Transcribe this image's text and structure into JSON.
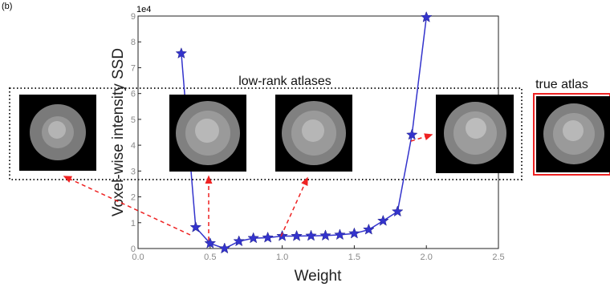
{
  "panel_label": "(b)",
  "chart_data": {
    "type": "line",
    "xlabel": "Weight",
    "ylabel": "Voxel-wise intensity SSD",
    "y_exponent_label": "1e4",
    "xlim": [
      0.0,
      2.5
    ],
    "ylim": [
      0,
      9
    ],
    "x_ticks": [
      "0.0",
      "0.5",
      "1.0",
      "1.5",
      "2.0",
      "2.5"
    ],
    "y_ticks": [
      "0",
      "1",
      "2",
      "3",
      "4",
      "5",
      "6",
      "7",
      "8",
      "9"
    ],
    "grid": false,
    "series": [
      {
        "color": "#3333cc",
        "marker": "star",
        "x": [
          0.3,
          0.4,
          0.5,
          0.6,
          0.7,
          0.8,
          0.9,
          1.0,
          1.1,
          1.2,
          1.3,
          1.4,
          1.5,
          1.6,
          1.7,
          1.8,
          1.9,
          2.0
        ],
        "y": [
          7.55,
          0.82,
          0.2,
          0.0,
          0.28,
          0.4,
          0.42,
          0.48,
          0.48,
          0.49,
          0.5,
          0.53,
          0.58,
          0.73,
          1.07,
          1.43,
          4.4,
          8.95
        ]
      }
    ],
    "annotations": [
      {
        "text": "low-rank atlases"
      },
      {
        "text": "true atlas"
      }
    ],
    "arrow_color": "#ee2222",
    "true_atlas_border_color": "#ee2222"
  }
}
